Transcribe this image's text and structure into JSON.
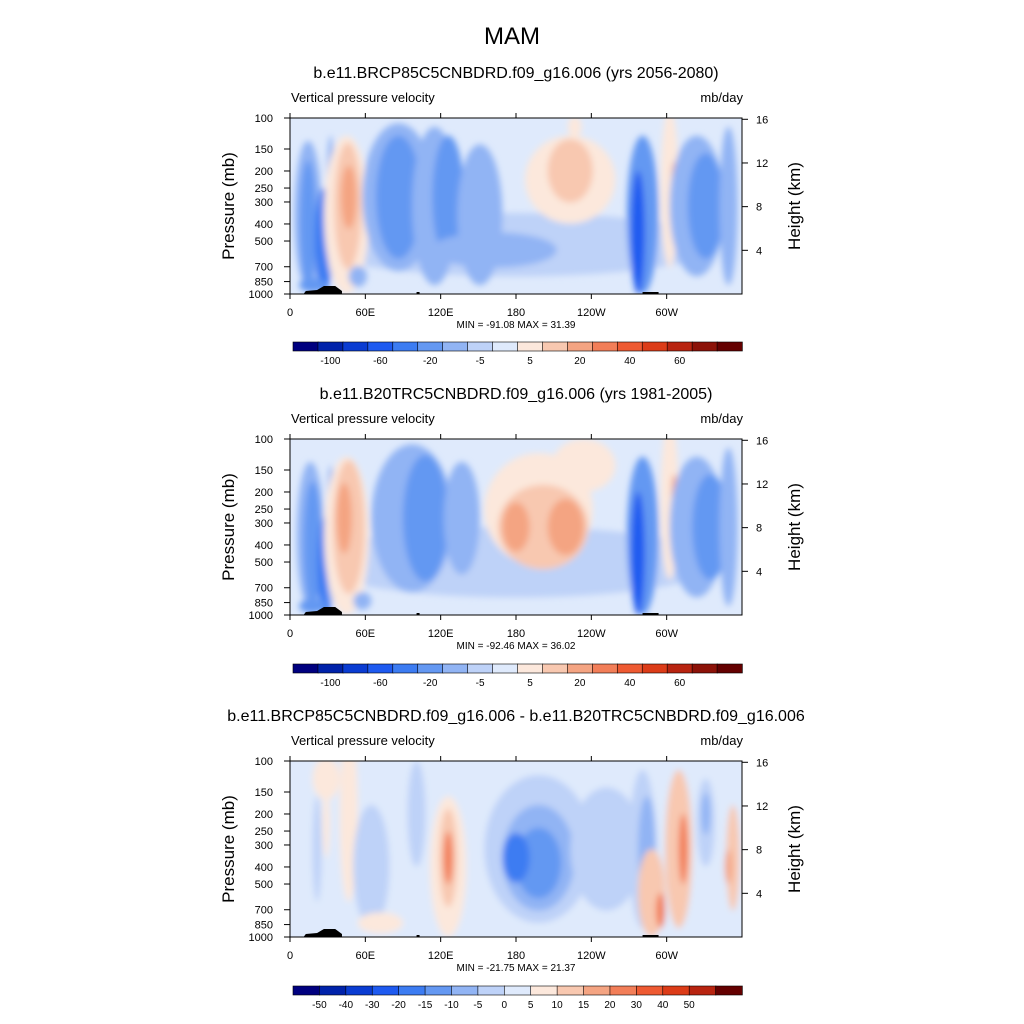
{
  "figure": {
    "title": "MAM"
  },
  "chart_data": [
    {
      "type": "heatmap",
      "title": "b.e11.BRCP85C5CNBDRD.f09_g16.006 (yrs 2056-2080)",
      "left_label": "Vertical pressure velocity",
      "right_label": "mb/day",
      "ylabel": "Pressure (mb)",
      "y2label": "Height (km)",
      "x_ticks": [
        "0",
        "60E",
        "120E",
        "180",
        "120W",
        "60W"
      ],
      "y_ticks": [
        "100",
        "150",
        "200",
        "250",
        "300",
        "400",
        "500",
        "700",
        "850",
        "1000"
      ],
      "y_tick_values": [
        100,
        150,
        200,
        250,
        300,
        400,
        500,
        700,
        850,
        1000
      ],
      "y2_ticks": [
        "16",
        "12",
        "8",
        "4"
      ],
      "y2_tick_values": [
        16,
        12,
        8,
        4
      ],
      "stats": "MIN = -91.08  MAX =  31.39",
      "min": -91.08,
      "max": 31.39,
      "colorbar_labels": [
        "-100",
        "-60",
        "-20",
        "-5",
        "5",
        "20",
        "40",
        "60"
      ],
      "colorbar_colors": [
        "#00007f",
        "#0022aa",
        "#0a3cd2",
        "#1e5af0",
        "#3c7cf2",
        "#6498f2",
        "#91b4f4",
        "#bed2f8",
        "#dfeafc",
        "#fce8dc",
        "#f8c8b0",
        "#f4a482",
        "#f27e58",
        "#ee5a32",
        "#dc3c18",
        "#b82410",
        "#8c1208",
        "#640000"
      ]
    },
    {
      "type": "heatmap",
      "title": "b.e11.B20TRC5CNBDRD.f09_g16.006 (yrs 1981-2005)",
      "left_label": "Vertical pressure velocity",
      "right_label": "mb/day",
      "ylabel": "Pressure (mb)",
      "y2label": "Height (km)",
      "x_ticks": [
        "0",
        "60E",
        "120E",
        "180",
        "120W",
        "60W"
      ],
      "y_ticks": [
        "100",
        "150",
        "200",
        "250",
        "300",
        "400",
        "500",
        "700",
        "850",
        "1000"
      ],
      "y_tick_values": [
        100,
        150,
        200,
        250,
        300,
        400,
        500,
        700,
        850,
        1000
      ],
      "y2_ticks": [
        "16",
        "12",
        "8",
        "4"
      ],
      "y2_tick_values": [
        16,
        12,
        8,
        4
      ],
      "stats": "MIN = -92.46  MAX =  36.02",
      "min": -92.46,
      "max": 36.02,
      "colorbar_labels": [
        "-100",
        "-60",
        "-20",
        "-5",
        "5",
        "20",
        "40",
        "60"
      ],
      "colorbar_colors": [
        "#00007f",
        "#0022aa",
        "#0a3cd2",
        "#1e5af0",
        "#3c7cf2",
        "#6498f2",
        "#91b4f4",
        "#bed2f8",
        "#dfeafc",
        "#fce8dc",
        "#f8c8b0",
        "#f4a482",
        "#f27e58",
        "#ee5a32",
        "#dc3c18",
        "#b82410",
        "#8c1208",
        "#640000"
      ]
    },
    {
      "type": "heatmap",
      "title": "b.e11.BRCP85C5CNBDRD.f09_g16.006 - b.e11.B20TRC5CNBDRD.f09_g16.006",
      "left_label": "Vertical pressure velocity",
      "right_label": "mb/day",
      "ylabel": "Pressure (mb)",
      "y2label": "Height (km)",
      "x_ticks": [
        "0",
        "60E",
        "120E",
        "180",
        "120W",
        "60W"
      ],
      "y_ticks": [
        "100",
        "150",
        "200",
        "250",
        "300",
        "400",
        "500",
        "700",
        "850",
        "1000"
      ],
      "y_tick_values": [
        100,
        150,
        200,
        250,
        300,
        400,
        500,
        700,
        850,
        1000
      ],
      "y2_ticks": [
        "16",
        "12",
        "8",
        "4"
      ],
      "y2_tick_values": [
        16,
        12,
        8,
        4
      ],
      "stats": "MIN = -21.75  MAX =  21.37",
      "min": -21.75,
      "max": 21.37,
      "colorbar_labels": [
        "-50",
        "-40",
        "-30",
        "-20",
        "-15",
        "-10",
        "-5",
        "0",
        "5",
        "10",
        "15",
        "20",
        "30",
        "40",
        "50"
      ],
      "colorbar_colors": [
        "#00007f",
        "#0022aa",
        "#0a3cd2",
        "#1e5af0",
        "#3c7cf2",
        "#6498f2",
        "#91b4f4",
        "#bed2f8",
        "#dfeafc",
        "#fce8dc",
        "#f8c8b0",
        "#f4a482",
        "#f27e58",
        "#ee5a32",
        "#dc3c18",
        "#b82410",
        "#640000"
      ]
    }
  ]
}
